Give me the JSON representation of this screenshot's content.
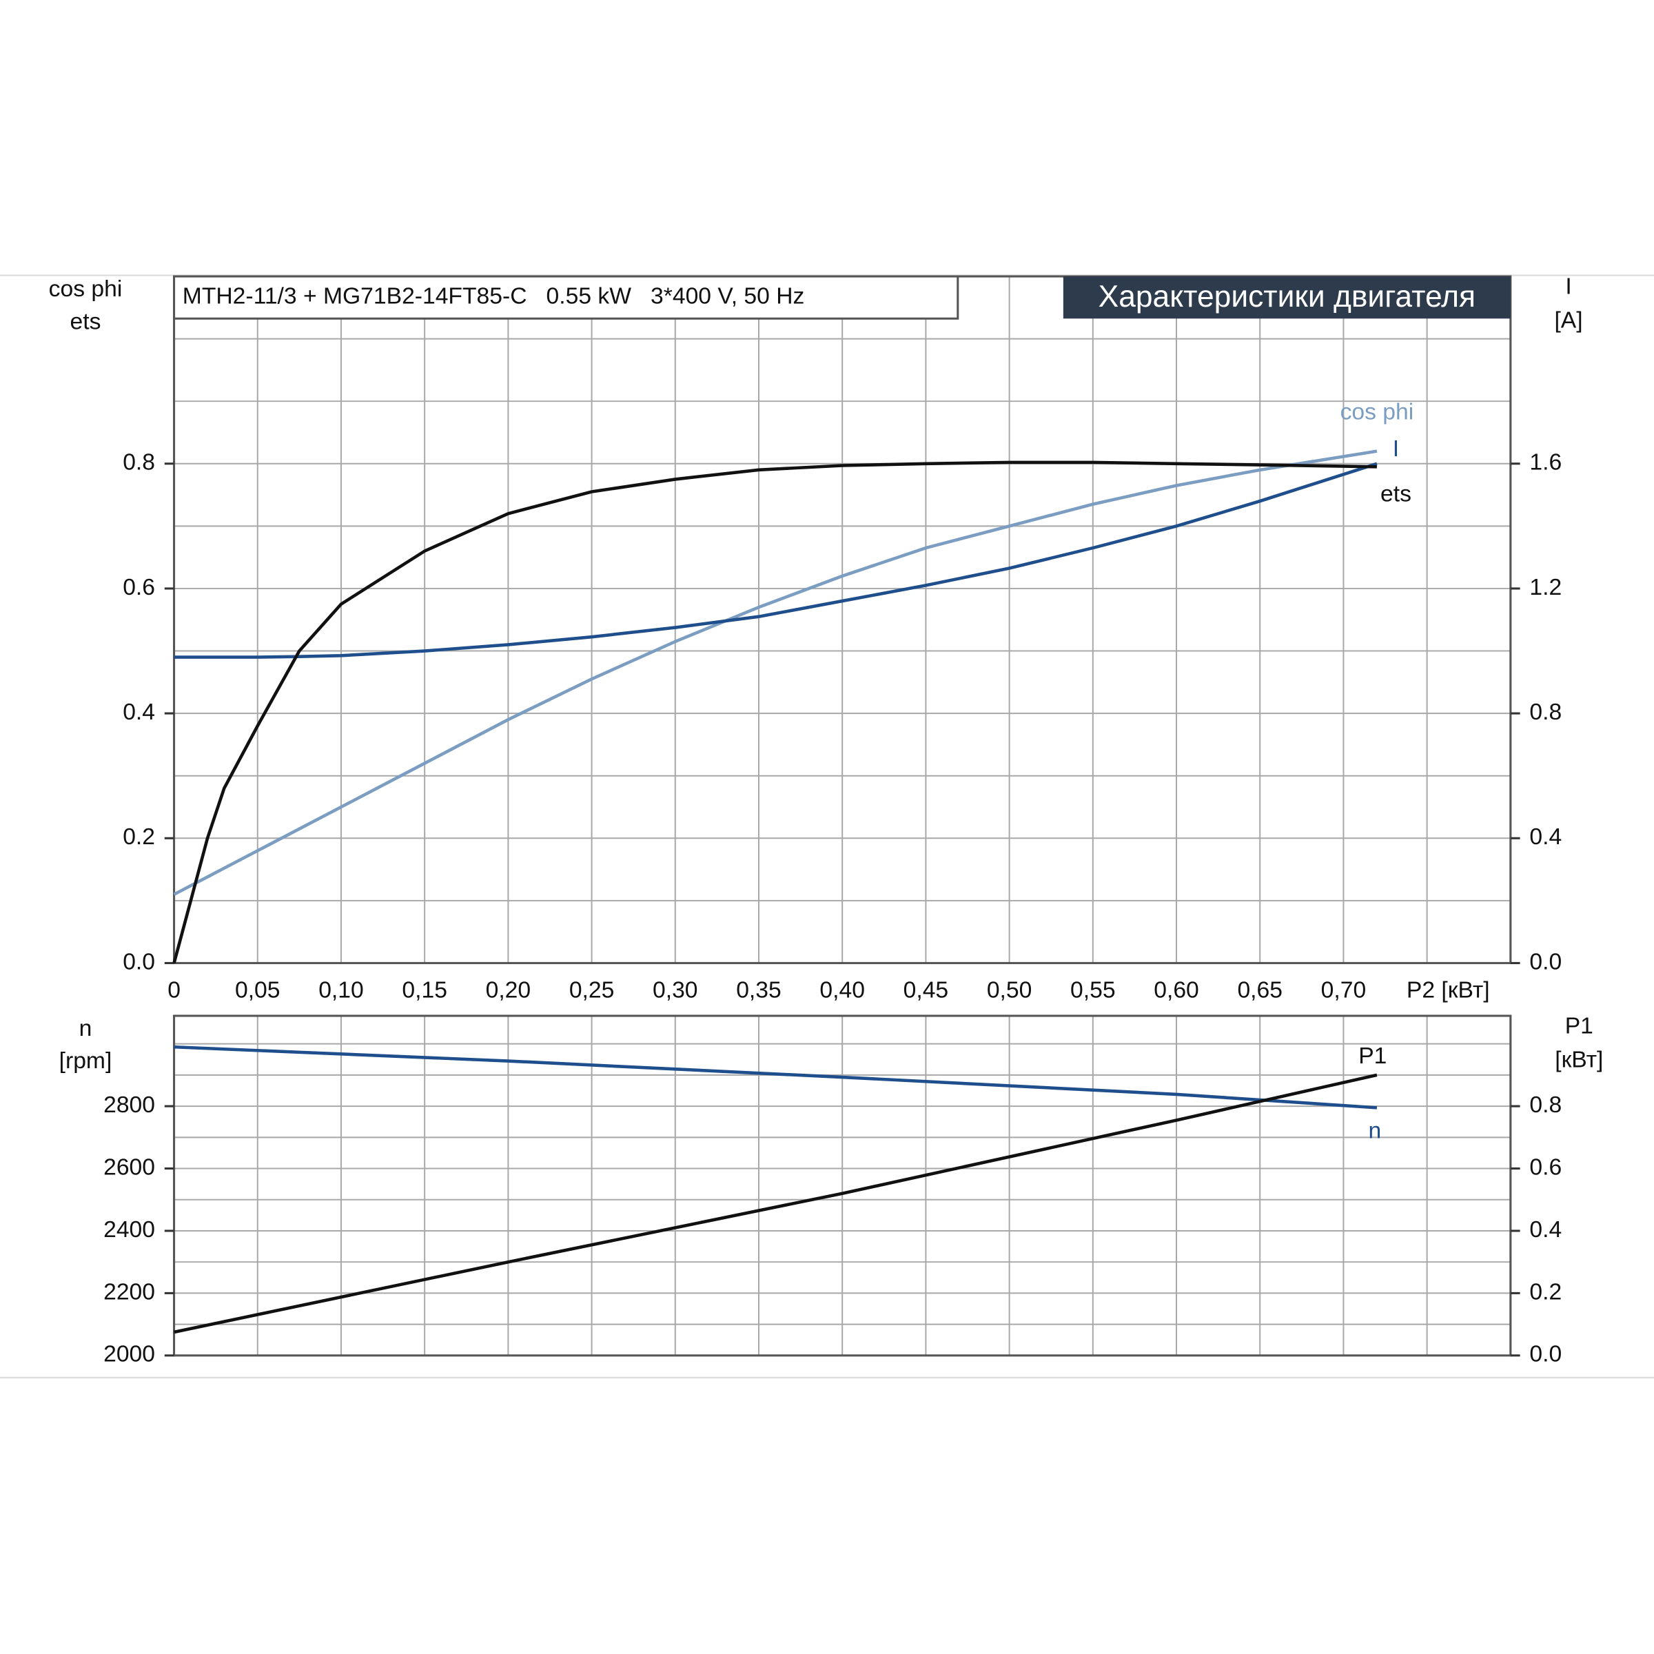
{
  "chart_data": [
    {
      "type": "line",
      "title": "MTH2-11/3 + MG71B2-14FT85-C   0.55 kW   3*400 V, 50 Hz",
      "header": "Характеристики двигателя",
      "ylabel": [
        "cos phi",
        "ets"
      ],
      "y2label": [
        "I",
        "[A]"
      ],
      "xlabel": "P2 [кВт]",
      "xlim": [
        0,
        0.8
      ],
      "xticks": [
        0,
        {
          "value": 0.05,
          "label": "0,05"
        },
        {
          "value": 0.1,
          "label": "0,10"
        },
        {
          "value": 0.15,
          "label": "0,15"
        },
        {
          "value": 0.2,
          "label": "0,20"
        },
        {
          "value": 0.25,
          "label": "0,25"
        },
        {
          "value": 0.3,
          "label": "0,30"
        },
        {
          "value": 0.35,
          "label": "0,35"
        },
        {
          "value": 0.4,
          "label": "0,40"
        },
        {
          "value": 0.45,
          "label": "0,45"
        },
        {
          "value": 0.5,
          "label": "0,50"
        },
        {
          "value": 0.55,
          "label": "0,55"
        },
        {
          "value": 0.6,
          "label": "0,60"
        },
        {
          "value": 0.65,
          "label": "0,65"
        },
        {
          "value": 0.7,
          "label": "0,70"
        }
      ],
      "xminorticks": [
        0.75
      ],
      "ylim": [
        0,
        1.1
      ],
      "yticks": [
        {
          "value": 0,
          "label": "0.0"
        },
        0.2,
        0.4,
        0.6,
        0.8
      ],
      "yminorticks": [
        0.1,
        0.3,
        0.5,
        0.7,
        0.9,
        1.0
      ],
      "y2lim": [
        0,
        2.2
      ],
      "y2ticks": [
        {
          "value": 0,
          "label": "0.0"
        },
        0.4,
        0.8,
        1.2,
        1.6
      ],
      "grid": true,
      "x": [
        0,
        0.01,
        0.02,
        0.03,
        0.05,
        0.075,
        0.1,
        0.15,
        0.2,
        0.25,
        0.3,
        0.35,
        0.4,
        0.45,
        0.5,
        0.55,
        0.6,
        0.65,
        0.72
      ],
      "series": [
        {
          "name": "cos phi",
          "color": "#7b9dc2",
          "values": [
            0.11,
            0.124,
            0.138,
            0.152,
            0.18,
            0.215,
            0.25,
            0.32,
            0.39,
            0.455,
            0.515,
            0.57,
            0.62,
            0.665,
            0.7,
            0.735,
            0.765,
            0.79,
            0.82
          ]
        },
        {
          "name": "I",
          "color": "#1f4e8c",
          "axis": "y2",
          "values": [
            0.98,
            0.98,
            0.98,
            0.98,
            0.98,
            0.982,
            0.985,
            1.0,
            1.02,
            1.045,
            1.075,
            1.11,
            1.16,
            1.21,
            1.265,
            1.33,
            1.4,
            1.48,
            1.6
          ]
        },
        {
          "name": "ets",
          "color": "#111111",
          "values": [
            0,
            0.1,
            0.2,
            0.28,
            0.38,
            0.5,
            0.575,
            0.66,
            0.72,
            0.755,
            0.775,
            0.79,
            0.797,
            0.8,
            0.802,
            0.802,
            0.8,
            0.798,
            0.795
          ]
        }
      ]
    },
    {
      "type": "line",
      "ylabel": [
        "n",
        "[rpm]"
      ],
      "y2label": [
        "P1",
        "[кВт]"
      ],
      "xlim": [
        0,
        0.8
      ],
      "xgrid": [
        0.05,
        0.1,
        0.15,
        0.2,
        0.25,
        0.3,
        0.35,
        0.4,
        0.45,
        0.5,
        0.55,
        0.6,
        0.65,
        0.7,
        0.75
      ],
      "ylim": [
        2000,
        3090
      ],
      "yticks": [
        2000,
        2200,
        2400,
        2600,
        2800
      ],
      "yminorticks": [
        2100,
        2300,
        2500,
        2700,
        2900,
        3000
      ],
      "y2lim": [
        0,
        1.09
      ],
      "y2ticks": [
        {
          "value": 0,
          "label": "0.0"
        },
        0.2,
        0.4,
        0.6,
        0.8
      ],
      "grid": true,
      "x": [
        0,
        0.2,
        0.4,
        0.6,
        0.72
      ],
      "series": [
        {
          "name": "n",
          "color": "#1f4e8c",
          "values": [
            2990,
            2945,
            2893,
            2838,
            2795
          ]
        },
        {
          "name": "P1",
          "color": "#111111",
          "axis": "y2",
          "values": [
            0.075,
            0.3,
            0.52,
            0.755,
            0.9
          ]
        }
      ]
    }
  ]
}
